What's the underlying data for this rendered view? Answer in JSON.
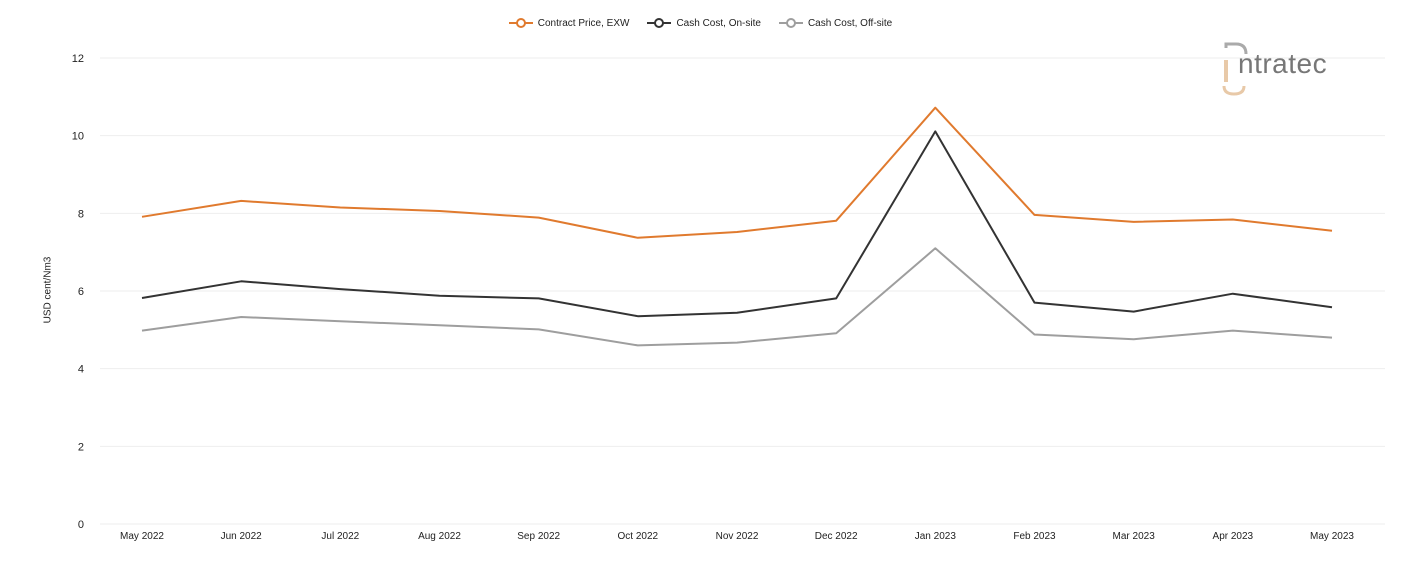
{
  "chart_data": {
    "type": "line",
    "title": "",
    "xlabel": "",
    "ylabel": "USD cent/Nm3",
    "ylim": [
      0,
      12
    ],
    "yticks": [
      0,
      2,
      4,
      6,
      8,
      10,
      12
    ],
    "categories": [
      "May 2022",
      "Jun 2022",
      "Jul 2022",
      "Aug 2022",
      "Sep 2022",
      "Oct 2022",
      "Nov 2022",
      "Dec 2022",
      "Jan 2023",
      "Feb 2023",
      "Mar 2023",
      "Apr 2023",
      "May 2023"
    ],
    "legend_position": "top-center",
    "grid": true,
    "series": [
      {
        "name": "Contract Price, EXW",
        "color": "#e07a2e",
        "values": [
          7.91,
          8.32,
          8.15,
          8.06,
          7.89,
          7.37,
          7.52,
          7.81,
          10.72,
          7.96,
          7.78,
          7.84,
          7.55
        ]
      },
      {
        "name": "Cash Cost, On-site",
        "color": "#333333",
        "values": [
          5.82,
          6.25,
          6.05,
          5.88,
          5.81,
          5.35,
          5.44,
          5.81,
          10.11,
          5.7,
          5.47,
          5.93,
          5.58
        ]
      },
      {
        "name": "Cash Cost, Off-site",
        "color": "#9e9e9e",
        "values": [
          4.98,
          5.33,
          5.22,
          5.12,
          5.01,
          4.6,
          4.67,
          4.91,
          7.1,
          4.88,
          4.76,
          4.98,
          4.8
        ]
      }
    ]
  },
  "logo": {
    "text": "ntratec",
    "icon_name": "intratec-logo-icon",
    "accent_color": "#e8c9a8"
  }
}
